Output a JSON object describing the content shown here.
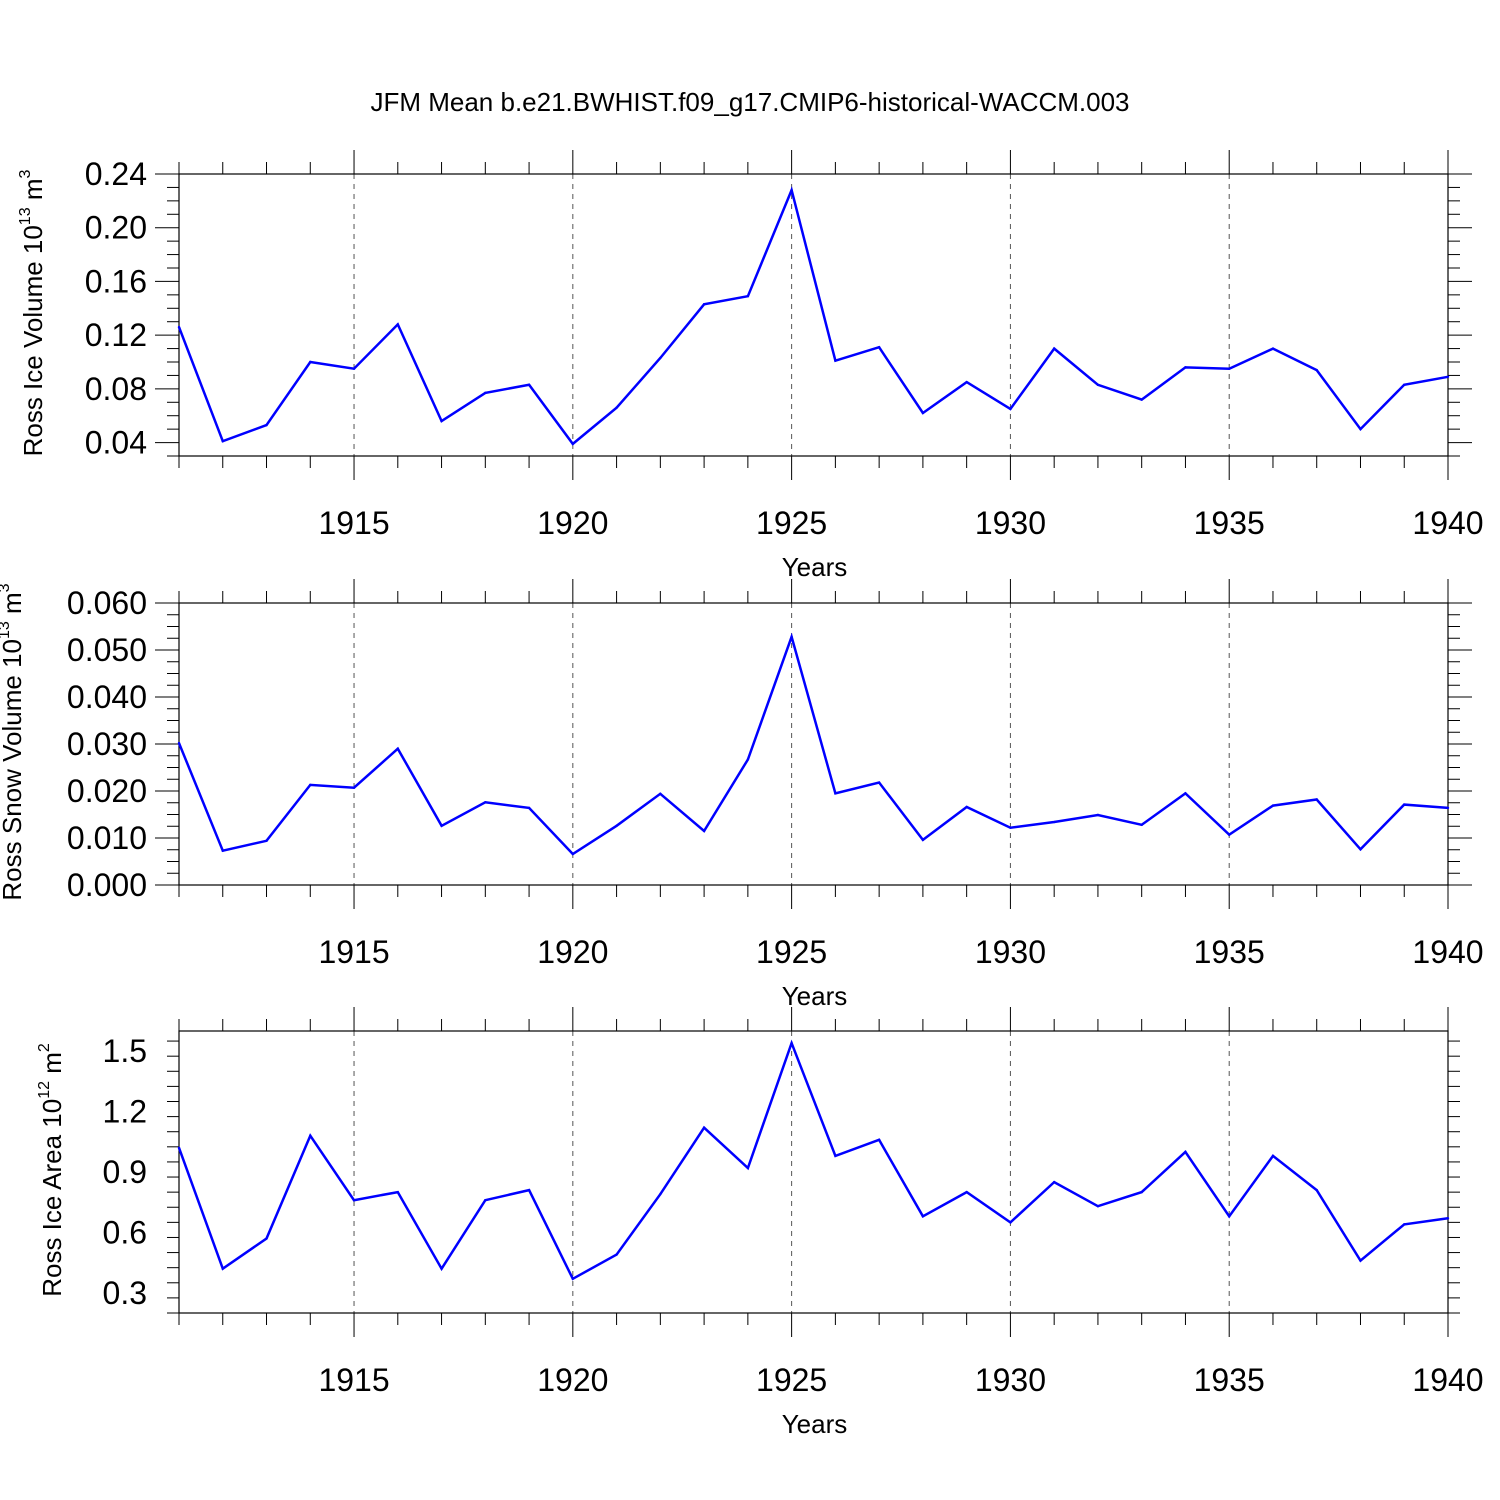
{
  "title": "JFM Mean b.e21.BWHIST.f09_g17.CMIP6-historical-WACCM.003",
  "colors": {
    "line": "#0000ff",
    "axis": "#000000",
    "grid": "#555555"
  },
  "chart_data": [
    {
      "type": "line",
      "ylabel": {
        "text": "Ross Ice Volume 10",
        "sup": "13",
        "unit": " m",
        "unit_sup": "3"
      },
      "xlabel": "Years",
      "xlim": [
        1911,
        1940
      ],
      "ylim": [
        0.03,
        0.24
      ],
      "yticks": [
        0.04,
        0.08,
        0.12,
        0.16,
        0.2,
        0.24
      ],
      "ytick_labels": [
        "0.04",
        "0.08",
        "0.12",
        "0.16",
        "0.20",
        "0.24"
      ],
      "xticks": [
        1915,
        1920,
        1925,
        1930,
        1935,
        1940
      ],
      "xtick_labels": [
        "1915",
        "1920",
        "1925",
        "1930",
        "1935",
        "1940"
      ],
      "x": [
        1911,
        1912,
        1913,
        1914,
        1915,
        1916,
        1917,
        1918,
        1919,
        1920,
        1921,
        1922,
        1923,
        1924,
        1925,
        1926,
        1927,
        1928,
        1929,
        1930,
        1931,
        1932,
        1933,
        1934,
        1935,
        1936,
        1937,
        1938,
        1939,
        1940
      ],
      "values": [
        0.126,
        0.041,
        0.053,
        0.1,
        0.095,
        0.128,
        0.056,
        0.077,
        0.083,
        0.039,
        0.066,
        0.103,
        0.143,
        0.149,
        0.228,
        0.101,
        0.111,
        0.062,
        0.085,
        0.065,
        0.11,
        0.083,
        0.072,
        0.096,
        0.095,
        0.11,
        0.094,
        0.05,
        0.083,
        0.089
      ],
      "grid": "vertical dashed at major x ticks"
    },
    {
      "type": "line",
      "ylabel": {
        "text": "Ross Snow Volume 10",
        "sup": "13",
        "unit": " m",
        "unit_sup": "3"
      },
      "xlabel": "Years",
      "xlim": [
        1911,
        1940
      ],
      "ylim": [
        0.0,
        0.06
      ],
      "yticks": [
        0.0,
        0.01,
        0.02,
        0.03,
        0.04,
        0.05,
        0.06
      ],
      "ytick_labels": [
        "0.000",
        "0.010",
        "0.020",
        "0.030",
        "0.040",
        "0.050",
        "0.060"
      ],
      "xticks": [
        1915,
        1920,
        1925,
        1930,
        1935,
        1940
      ],
      "xtick_labels": [
        "1915",
        "1920",
        "1925",
        "1930",
        "1935",
        "1940"
      ],
      "x": [
        1911,
        1912,
        1913,
        1914,
        1915,
        1916,
        1917,
        1918,
        1919,
        1920,
        1921,
        1922,
        1923,
        1924,
        1925,
        1926,
        1927,
        1928,
        1929,
        1930,
        1931,
        1932,
        1933,
        1934,
        1935,
        1936,
        1937,
        1938,
        1939,
        1940
      ],
      "values": [
        0.0302,
        0.0073,
        0.0094,
        0.0213,
        0.0207,
        0.029,
        0.0126,
        0.0176,
        0.0164,
        0.0066,
        0.0126,
        0.0194,
        0.0115,
        0.0267,
        0.0528,
        0.0195,
        0.0218,
        0.0096,
        0.0166,
        0.0122,
        0.0134,
        0.0149,
        0.0128,
        0.0195,
        0.0107,
        0.0169,
        0.0182,
        0.0076,
        0.0171,
        0.0164
      ],
      "grid": "vertical dashed at major x ticks"
    },
    {
      "type": "line",
      "ylabel": {
        "text": "Ross Ice Area 10",
        "sup": "12",
        "unit": " m",
        "unit_sup": "2"
      },
      "xlabel": "Years",
      "xlim": [
        1911,
        1940
      ],
      "ylim": [
        0.2,
        1.6
      ],
      "yticks": [
        0.3,
        0.6,
        0.9,
        1.2,
        1.5
      ],
      "ytick_labels": [
        "0.3",
        "0.6",
        "0.9",
        "1.2",
        "1.5"
      ],
      "xticks": [
        1915,
        1920,
        1925,
        1930,
        1935,
        1940
      ],
      "xtick_labels": [
        "1915",
        "1920",
        "1925",
        "1930",
        "1935",
        "1940"
      ],
      "x": [
        1911,
        1912,
        1913,
        1914,
        1915,
        1916,
        1917,
        1918,
        1919,
        1920,
        1921,
        1922,
        1923,
        1924,
        1925,
        1926,
        1927,
        1928,
        1929,
        1930,
        1931,
        1932,
        1933,
        1934,
        1935,
        1936,
        1937,
        1938,
        1939,
        1940
      ],
      "values": [
        1.02,
        0.42,
        0.57,
        1.08,
        0.76,
        0.8,
        0.42,
        0.76,
        0.81,
        0.37,
        0.49,
        0.79,
        1.12,
        0.92,
        1.54,
        0.98,
        1.06,
        0.68,
        0.8,
        0.65,
        0.85,
        0.73,
        0.8,
        1.0,
        0.68,
        0.98,
        0.81,
        0.46,
        0.64,
        0.67
      ],
      "grid": "vertical dashed at major x ticks"
    }
  ]
}
